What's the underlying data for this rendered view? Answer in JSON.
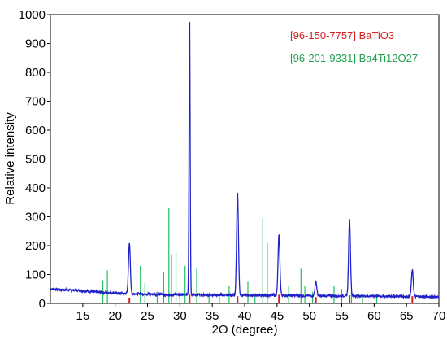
{
  "chart_data": {
    "type": "line",
    "xlabel": "2Θ (degree)",
    "ylabel": "Relative intensity",
    "xlim": [
      10,
      70
    ],
    "ylim": [
      0,
      1000
    ],
    "x_ticks": [
      "15",
      "20",
      "25",
      "30",
      "35",
      "40",
      "45",
      "50",
      "55",
      "60",
      "65",
      "70"
    ],
    "y_ticks": [
      "0",
      "100",
      "200",
      "300",
      "400",
      "500",
      "600",
      "700",
      "800",
      "900",
      "1000"
    ],
    "grid": false,
    "legend_position": "top-right",
    "series": [
      {
        "name": "",
        "color": "#2020c8",
        "style": "line",
        "x": [
          10,
          14,
          18,
          21.6,
          22.2,
          22.8,
          28,
          31,
          31.5,
          32,
          38.3,
          38.9,
          39.5,
          44.5,
          45.3,
          46,
          50.3,
          51,
          51.8,
          55.6,
          56.2,
          56.9,
          65.3,
          65.9,
          66.6,
          70
        ],
        "y": [
          50,
          45,
          38,
          34,
          210,
          34,
          30,
          30,
          1000,
          30,
          28,
          385,
          28,
          28,
          235,
          28,
          26,
          75,
          26,
          26,
          290,
          26,
          24,
          115,
          24,
          22
        ]
      },
      {
        "name": "[96-150-7757] BaTiO3",
        "color": "#d42020",
        "style": "sticks",
        "x": [
          22.2,
          31.5,
          38.9,
          45.3,
          51.0,
          56.2,
          65.9
        ],
        "y": [
          20,
          30,
          25,
          30,
          22,
          28,
          25
        ]
      },
      {
        "name": "[96-201-9331] Ba4Ti12O27",
        "color": "#20c060",
        "style": "sticks",
        "x": [
          18.1,
          18.8,
          23.9,
          24.6,
          26.5,
          27.5,
          28.3,
          28.7,
          29.4,
          30.0,
          30.8,
          32.6,
          34.5,
          36.1,
          37.6,
          40.5,
          41.6,
          42.8,
          43.5,
          46.8,
          48.7,
          49.3,
          50.5,
          53.8,
          55.0,
          56.5,
          58.2,
          60.4
        ],
        "y": [
          80,
          115,
          130,
          70,
          40,
          110,
          330,
          170,
          175,
          40,
          130,
          120,
          35,
          25,
          60,
          75,
          35,
          295,
          210,
          60,
          120,
          60,
          40,
          60,
          50,
          40,
          30,
          30
        ]
      }
    ]
  }
}
